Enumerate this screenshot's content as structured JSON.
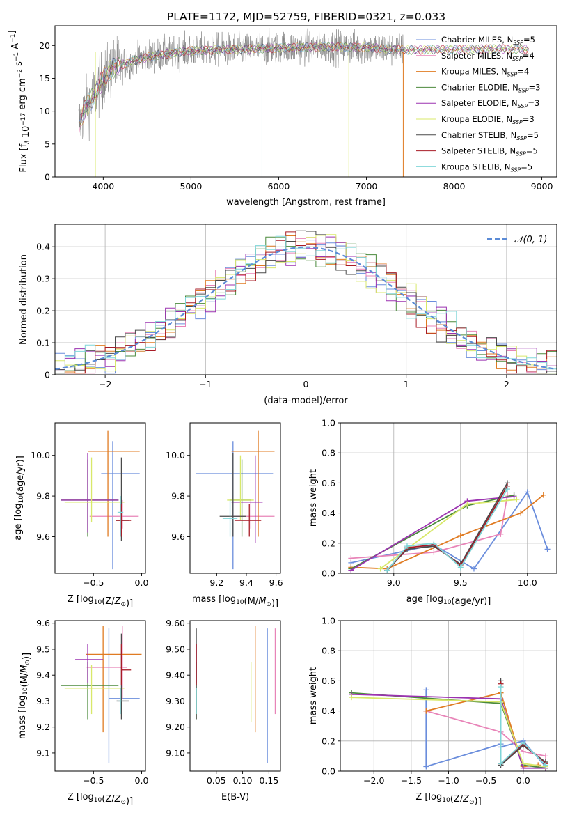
{
  "figure_title": "PLATE=1172, MJD=52759, FIBERID=0321, z=0.033",
  "series": [
    {
      "name": "Chabrier MILES",
      "nssp": "5",
      "color": "#6a8ddc"
    },
    {
      "name": "Salpeter MILES",
      "nssp": "4",
      "color": "#e884b8"
    },
    {
      "name": "Kroupa MILES",
      "nssp": "4",
      "color": "#e07b22"
    },
    {
      "name": "Chabrier ELODIE",
      "nssp": "3",
      "color": "#4b8a3c"
    },
    {
      "name": "Salpeter ELODIE",
      "nssp": "3",
      "color": "#9b32b0"
    },
    {
      "name": "Kroupa ELODIE",
      "nssp": "3",
      "color": "#d8e86a"
    },
    {
      "name": "Chabrier STELIB",
      "nssp": "5",
      "color": "#4a4a4a"
    },
    {
      "name": "Salpeter STELIB",
      "nssp": "5",
      "color": "#a81c26"
    },
    {
      "name": "Kroupa STELIB",
      "nssp": "5",
      "color": "#7fd6d8"
    }
  ],
  "chart_data": [
    {
      "id": "spectrum",
      "type": "line",
      "xlabel": "wavelength [Angstrom, rest frame]",
      "ylabel": "Flux [f_λ 10^-17 erg cm^-2 s^-1 A^-1]",
      "xlim": [
        3450,
        9170
      ],
      "ylim": [
        0,
        23
      ],
      "xticks": [
        4000,
        5000,
        6000,
        7000,
        8000,
        9000
      ],
      "yticks": [
        0,
        5,
        10,
        15,
        20
      ],
      "grid": false,
      "legend": "top-right",
      "data_color": "#7f7f7f",
      "data_range": [
        3720,
        7430
      ],
      "continuum": [
        [
          3720,
          8
        ],
        [
          3800,
          10.5
        ],
        [
          3900,
          12.5
        ],
        [
          4000,
          15
        ],
        [
          4100,
          16.5
        ],
        [
          4300,
          17.5
        ],
        [
          4600,
          18.5
        ],
        [
          5000,
          19.2
        ],
        [
          5500,
          19.4
        ],
        [
          6000,
          19.6
        ],
        [
          6500,
          19.8
        ],
        [
          7000,
          19.7
        ],
        [
          7430,
          19.3
        ],
        [
          8000,
          19.4
        ],
        [
          8500,
          19.5
        ],
        [
          8850,
          19.4
        ]
      ],
      "model_drops": [
        {
          "x": 5810,
          "y": 0,
          "series": "Kroupa STELIB"
        },
        {
          "x": 6800,
          "y": 0,
          "series": "Kroupa ELODIE"
        },
        {
          "x": 7420,
          "y": 0,
          "series": "Kroupa MILES"
        },
        {
          "x": 3910,
          "y": 0,
          "series": "Kroupa ELODIE"
        }
      ]
    },
    {
      "id": "residuals",
      "type": "histogram",
      "xlabel": "(data-model)/error",
      "ylabel": "Normed distribution",
      "xlim": [
        -2.5,
        2.5
      ],
      "ylim": [
        0,
        0.47
      ],
      "xticks": [
        -2,
        -1,
        0,
        1,
        2
      ],
      "yticks": [
        0,
        0.1,
        0.2,
        0.3,
        0.4
      ],
      "grid": true,
      "bin_width": 0.1,
      "reference": {
        "label": "𝒩(0, 1)",
        "mean": 0,
        "sigma": 1,
        "color": "#5b8bd6"
      },
      "legend": "top-right"
    },
    {
      "id": "age_vs_Z",
      "type": "errorbar",
      "xlabel": "Z [log10(Z/Z⊙)]",
      "ylabel": "age  [log10(age/yr)]",
      "xlim": [
        -0.9,
        0.04
      ],
      "ylim": [
        9.42,
        10.16
      ],
      "xticks": [
        -0.5,
        0.0
      ],
      "yticks": [
        9.6,
        9.8,
        10.0
      ],
      "points": [
        {
          "series": "Chabrier MILES",
          "x": -0.3,
          "xerr": [
            0.12,
            0.28
          ],
          "y": 9.91,
          "yerr": [
            0.47,
            0.16
          ]
        },
        {
          "series": "Salpeter MILES",
          "x": -0.2,
          "xerr": [
            0.34,
            0.17
          ],
          "y": 9.7,
          "yerr": [
            0.06,
            0.08
          ]
        },
        {
          "series": "Kroupa MILES",
          "x": -0.35,
          "xerr": [
            0.21,
            0.33
          ],
          "y": 10.02,
          "yerr": [
            0.42,
            0.1
          ]
        },
        {
          "series": "Chabrier ELODIE",
          "x": -0.56,
          "xerr": [
            0.28,
            0.32
          ],
          "y": 9.78,
          "yerr": [
            0.18,
            0.2
          ]
        },
        {
          "series": "Salpeter ELODIE",
          "x": -0.56,
          "xerr": [
            0.28,
            0.32
          ],
          "y": 9.78,
          "yerr": [
            0.16,
            0.23
          ]
        },
        {
          "series": "Kroupa ELODIE",
          "x": -0.52,
          "xerr": [
            0.28,
            0.34
          ],
          "y": 9.77,
          "yerr": [
            0.1,
            0.22
          ]
        },
        {
          "series": "Chabrier STELIB",
          "x": -0.21,
          "xerr": [
            0.06,
            0.08
          ],
          "y": 9.68,
          "yerr": [
            0.1,
            0.31
          ]
        },
        {
          "series": "Salpeter STELIB",
          "x": -0.21,
          "xerr": [
            0.06,
            0.1
          ],
          "y": 9.68,
          "yerr": [
            0.08,
            0.08
          ]
        },
        {
          "series": "Kroupa STELIB",
          "x": -0.22,
          "xerr": [
            0.03,
            0.03
          ],
          "y": 9.72,
          "yerr": [
            0.12,
            0.08
          ]
        }
      ]
    },
    {
      "id": "age_vs_mass",
      "type": "errorbar",
      "xlabel": "mass [log10(M/M⊙)]",
      "ylabel": "",
      "xlim": [
        9.02,
        9.63
      ],
      "ylim": [
        9.42,
        10.16
      ],
      "xticks": [
        9.2,
        9.4,
        9.6
      ],
      "yticks": [
        9.6,
        9.8,
        10.0
      ],
      "points": [
        {
          "series": "Chabrier MILES",
          "x": 9.31,
          "xerr": [
            0.25,
            0.27
          ],
          "y": 9.91,
          "yerr": [
            0.47,
            0.16
          ]
        },
        {
          "series": "Salpeter MILES",
          "x": 9.43,
          "xerr": [
            0.12,
            0.16
          ],
          "y": 9.7,
          "yerr": [
            0.06,
            0.08
          ]
        },
        {
          "series": "Kroupa MILES",
          "x": 9.48,
          "xerr": [
            0.18,
            0.11
          ],
          "y": 10.02,
          "yerr": [
            0.42,
            0.1
          ]
        },
        {
          "series": "Chabrier ELODIE",
          "x": 9.37,
          "xerr": [
            0.08,
            0.06
          ],
          "y": 9.78,
          "yerr": [
            0.18,
            0.2
          ]
        },
        {
          "series": "Salpeter ELODIE",
          "x": 9.46,
          "xerr": [
            0.16,
            0.05
          ],
          "y": 9.77,
          "yerr": [
            0.2,
            0.23
          ]
        },
        {
          "series": "Kroupa ELODIE",
          "x": 9.36,
          "xerr": [
            0.09,
            0.09
          ],
          "y": 9.78,
          "yerr": [
            0.1,
            0.22
          ]
        },
        {
          "series": "Chabrier STELIB",
          "x": 9.31,
          "xerr": [
            0.09,
            0.09
          ],
          "y": 9.7,
          "yerr": [
            0.1,
            0.31
          ]
        },
        {
          "series": "Salpeter STELIB",
          "x": 9.42,
          "xerr": [
            0.1,
            0.08
          ],
          "y": 9.68,
          "yerr": [
            0.08,
            0.08
          ]
        },
        {
          "series": "Kroupa STELIB",
          "x": 9.29,
          "xerr": [
            0.05,
            0.05
          ],
          "y": 9.69,
          "yerr": [
            0.09,
            0.09
          ]
        }
      ]
    },
    {
      "id": "weight_vs_age",
      "type": "line",
      "xlabel": "age  [log10(age/yr)]",
      "ylabel": "mass weight",
      "xlim": [
        8.6,
        10.22
      ],
      "ylim": [
        0,
        1.0
      ],
      "xticks": [
        9.0,
        9.5,
        10.0
      ],
      "yticks": [
        0.0,
        0.2,
        0.4,
        0.6,
        0.8,
        1.0
      ],
      "grid": true,
      "lines": [
        {
          "series": "Chabrier MILES",
          "x": [
            8.68,
            9.3,
            9.6,
            10.0,
            10.15
          ],
          "y": [
            0.07,
            0.19,
            0.03,
            0.54,
            0.16
          ]
        },
        {
          "series": "Salpeter MILES",
          "x": [
            8.68,
            9.3,
            9.8,
            9.85
          ],
          "y": [
            0.1,
            0.14,
            0.26,
            0.52
          ]
        },
        {
          "series": "Kroupa MILES",
          "x": [
            8.68,
            8.95,
            9.5,
            9.95,
            10.12
          ],
          "y": [
            0.04,
            0.03,
            0.25,
            0.4,
            0.52
          ]
        },
        {
          "series": "Chabrier ELODIE",
          "x": [
            8.68,
            9.55,
            9.9
          ],
          "y": [
            0.03,
            0.45,
            0.52
          ]
        },
        {
          "series": "Salpeter ELODIE",
          "x": [
            8.68,
            9.55,
            9.9
          ],
          "y": [
            0.02,
            0.48,
            0.51
          ]
        },
        {
          "series": "Kroupa ELODIE",
          "x": [
            8.9,
            9.55,
            9.92
          ],
          "y": [
            0.03,
            0.46,
            0.49
          ]
        },
        {
          "series": "Chabrier STELIB",
          "x": [
            8.95,
            9.1,
            9.3,
            9.5,
            9.85
          ],
          "y": [
            0.02,
            0.16,
            0.18,
            0.06,
            0.6
          ]
        },
        {
          "series": "Salpeter STELIB",
          "x": [
            8.95,
            9.1,
            9.3,
            9.5,
            9.85
          ],
          "y": [
            0.02,
            0.17,
            0.19,
            0.05,
            0.58
          ]
        },
        {
          "series": "Kroupa STELIB",
          "x": [
            8.95,
            9.1,
            9.3,
            9.5,
            9.85
          ],
          "y": [
            0.02,
            0.18,
            0.2,
            0.04,
            0.56
          ]
        }
      ]
    },
    {
      "id": "mass_vs_Z",
      "type": "errorbar",
      "xlabel": "Z [log10(Z/Z⊙)]",
      "ylabel": "mass [log10(M/M⊙)]",
      "xlim": [
        -0.9,
        0.04
      ],
      "ylim": [
        9.03,
        9.61
      ],
      "xticks": [
        -0.5,
        0.0
      ],
      "yticks": [
        9.1,
        9.2,
        9.3,
        9.4,
        9.5,
        9.6
      ],
      "points": [
        {
          "series": "Chabrier MILES",
          "x": -0.34,
          "xerr": [
            0.0,
            0.32
          ],
          "y": 9.31,
          "yerr": [
            0.25,
            0.27
          ]
        },
        {
          "series": "Salpeter MILES",
          "x": -0.2,
          "xerr": [
            0.37,
            0.05
          ],
          "y": 9.43,
          "yerr": [
            0.12,
            0.16
          ]
        },
        {
          "series": "Kroupa MILES",
          "x": -0.4,
          "xerr": [
            0.18,
            0.4
          ],
          "y": 9.48,
          "yerr": [
            0.3,
            0.11
          ]
        },
        {
          "series": "Chabrier ELODIE",
          "x": -0.56,
          "xerr": [
            0.28,
            0.32
          ],
          "y": 9.36,
          "yerr": [
            0.13,
            0.09
          ]
        },
        {
          "series": "Salpeter ELODIE",
          "x": -0.56,
          "xerr": [
            0.13,
            0.16
          ],
          "y": 9.46,
          "yerr": [
            0.09,
            0.06
          ]
        },
        {
          "series": "Kroupa ELODIE",
          "x": -0.52,
          "xerr": [
            0.28,
            0.34
          ],
          "y": 9.35,
          "yerr": [
            0.1,
            0.09
          ]
        },
        {
          "series": "Chabrier STELIB",
          "x": -0.21,
          "xerr": [
            0.05,
            0.08
          ],
          "y": 9.3,
          "yerr": [
            0.07,
            0.26
          ]
        },
        {
          "series": "Salpeter STELIB",
          "x": -0.21,
          "xerr": [
            0.0,
            0.1
          ],
          "y": 9.42,
          "yerr": [
            0.06,
            0.1
          ]
        },
        {
          "series": "Kroupa STELIB",
          "x": -0.22,
          "xerr": [
            0.03,
            0.02
          ],
          "y": 9.3,
          "yerr": [
            0.05,
            0.05
          ]
        }
      ]
    },
    {
      "id": "mass_vs_ebv",
      "type": "errorbar",
      "xlabel": "E(B-V)",
      "ylabel": "",
      "xlim": [
        0.0,
        0.172
      ],
      "ylim": [
        9.03,
        9.61
      ],
      "xticks": [
        0.05,
        0.1,
        0.15
      ],
      "yticks": [
        9.1,
        9.2,
        9.3,
        9.4,
        9.5,
        9.6
      ],
      "points": [
        {
          "series": "Chabrier MILES",
          "x": 0.147,
          "xerr": [
            0,
            0
          ],
          "y": 9.31,
          "yerr": [
            0.25,
            0.27
          ]
        },
        {
          "series": "Salpeter MILES",
          "x": 0.162,
          "xerr": [
            0,
            0
          ],
          "y": 9.42,
          "yerr": [
            0.17,
            0.16
          ]
        },
        {
          "series": "Kroupa MILES",
          "x": 0.124,
          "xerr": [
            0,
            0
          ],
          "y": 9.37,
          "yerr": [
            0.19,
            0.22
          ]
        },
        {
          "series": "Chabrier ELODIE",
          "x": 0.012,
          "xerr": [
            0,
            0
          ],
          "y": 9.36,
          "yerr": [
            0.13,
            0.09
          ]
        },
        {
          "series": "Salpeter ELODIE",
          "x": 0.012,
          "xerr": [
            0,
            0
          ],
          "y": 9.46,
          "yerr": [
            0.09,
            0.06
          ]
        },
        {
          "series": "Kroupa ELODIE",
          "x": 0.116,
          "xerr": [
            0,
            0
          ],
          "y": 9.33,
          "yerr": [
            0.11,
            0.12
          ]
        },
        {
          "series": "Chabrier STELIB",
          "x": 0.012,
          "xerr": [
            0,
            0
          ],
          "y": 9.4,
          "yerr": [
            0.17,
            0.18
          ]
        },
        {
          "series": "Salpeter STELIB",
          "x": 0.012,
          "xerr": [
            0,
            0
          ],
          "y": 9.42,
          "yerr": [
            0.06,
            0.1
          ]
        },
        {
          "series": "Kroupa STELIB",
          "x": 0.012,
          "xerr": [
            0,
            0
          ],
          "y": 9.3,
          "yerr": [
            0.05,
            0.05
          ]
        }
      ]
    },
    {
      "id": "weight_vs_Z",
      "type": "line",
      "xlabel": "Z [log10(Z/Z⊙)]",
      "ylabel": "mass weight",
      "xlim": [
        -2.45,
        0.45
      ],
      "ylim": [
        0,
        1.0
      ],
      "xticks": [
        -2.0,
        -1.5,
        -1.0,
        -0.5,
        0.0
      ],
      "yticks": [
        0.0,
        0.2,
        0.4,
        0.6,
        0.8,
        1.0
      ],
      "grid": true,
      "lines": [
        {
          "series": "Chabrier MILES",
          "x": [
            -1.3,
            -1.3,
            -0.3,
            -0.3,
            0.0,
            0.3
          ],
          "y": [
            0.54,
            0.03,
            0.18,
            0.16,
            0.2,
            0.03
          ]
        },
        {
          "series": "Salpeter MILES",
          "x": [
            -1.3,
            -0.3,
            0.0,
            0.3
          ],
          "y": [
            0.4,
            0.26,
            0.13,
            0.1
          ]
        },
        {
          "series": "Kroupa MILES",
          "x": [
            -1.3,
            -0.3,
            0.0,
            0.2
          ],
          "y": [
            0.4,
            0.52,
            0.03,
            0.04
          ]
        },
        {
          "series": "Chabrier ELODIE",
          "x": [
            -2.3,
            -0.3,
            0.0,
            0.3
          ],
          "y": [
            0.52,
            0.45,
            0.04,
            0.02
          ]
        },
        {
          "series": "Salpeter ELODIE",
          "x": [
            -2.3,
            -0.3,
            0.0,
            0.3
          ],
          "y": [
            0.51,
            0.48,
            0.02,
            0.02
          ]
        },
        {
          "series": "Kroupa ELODIE",
          "x": [
            -2.3,
            -0.3,
            0.0,
            0.3
          ],
          "y": [
            0.49,
            0.46,
            0.05,
            0.03
          ]
        },
        {
          "series": "Chabrier STELIB",
          "x": [
            -0.3,
            -0.3,
            0.0,
            0.3
          ],
          "y": [
            0.6,
            0.04,
            0.17,
            0.06
          ]
        },
        {
          "series": "Salpeter STELIB",
          "x": [
            -0.3,
            -0.3,
            0.0,
            0.3
          ],
          "y": [
            0.58,
            0.05,
            0.18,
            0.05
          ]
        },
        {
          "series": "Kroupa STELIB",
          "x": [
            -0.3,
            -0.3,
            0.0,
            0.3
          ],
          "y": [
            0.56,
            0.05,
            0.19,
            0.04
          ]
        }
      ]
    }
  ]
}
